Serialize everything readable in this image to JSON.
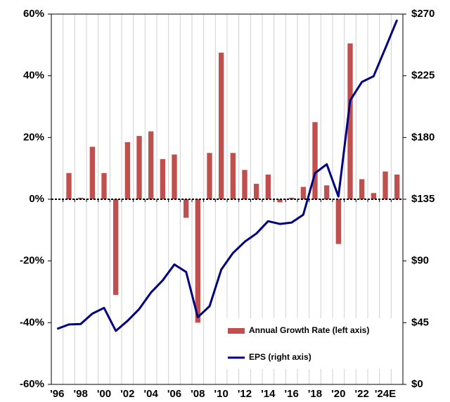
{
  "chart_data": {
    "type": "bar_line",
    "categories": [
      "'96",
      null,
      "'98",
      null,
      "'00",
      null,
      "'02",
      null,
      "'04",
      null,
      "'06",
      null,
      "'08",
      null,
      "'10",
      null,
      "'12",
      null,
      "'14",
      null,
      "'16",
      null,
      "'18",
      null,
      "'20",
      null,
      "'22",
      null,
      "'24E",
      null
    ],
    "series": [
      {
        "name": "Annual Growth Rate (left axis)",
        "color": "#c0504d",
        "axis": "y",
        "values": [
          null,
          8.5,
          0.5,
          17,
          8.5,
          -31,
          18.5,
          20.5,
          22,
          13,
          14.5,
          -6,
          -40,
          15,
          47.5,
          15,
          9.5,
          5,
          8,
          -1,
          0.5,
          4,
          25,
          4.5,
          -14.5,
          50.5,
          6.5,
          2,
          9,
          8
        ]
      },
      {
        "name": "EPS (right axis)",
        "color": "#000080",
        "axis": "y2",
        "values": [
          40.5,
          43.7,
          44,
          51.6,
          55.8,
          39,
          46.3,
          55,
          67,
          75.8,
          87.4,
          82,
          49,
          57,
          83.7,
          95.8,
          104,
          110,
          119,
          117,
          118,
          123.7,
          154,
          160.5,
          137,
          207,
          220.5,
          224.7,
          245,
          265.8
        ]
      }
    ],
    "ylim": [
      -60,
      60
    ],
    "yticks": [
      {
        "value": -60,
        "label": "-60%"
      },
      {
        "value": -40,
        "label": "-40%"
      },
      {
        "value": -20,
        "label": "-20%"
      },
      {
        "value": 0,
        "label": "0%"
      },
      {
        "value": 20,
        "label": "20%"
      },
      {
        "value": 40,
        "label": "40%"
      },
      {
        "value": 60,
        "label": "60%"
      }
    ],
    "y2lim": [
      0,
      270
    ],
    "y2ticks": [
      {
        "value": 0,
        "label": "$0"
      },
      {
        "value": 45,
        "label": "$45"
      },
      {
        "value": 90,
        "label": "$90"
      },
      {
        "value": 135,
        "label": "$135"
      },
      {
        "value": 180,
        "label": "$180"
      },
      {
        "value": 225,
        "label": "$225"
      },
      {
        "value": 270,
        "label": "$270"
      }
    ],
    "grid": true,
    "legend": "lower right"
  }
}
